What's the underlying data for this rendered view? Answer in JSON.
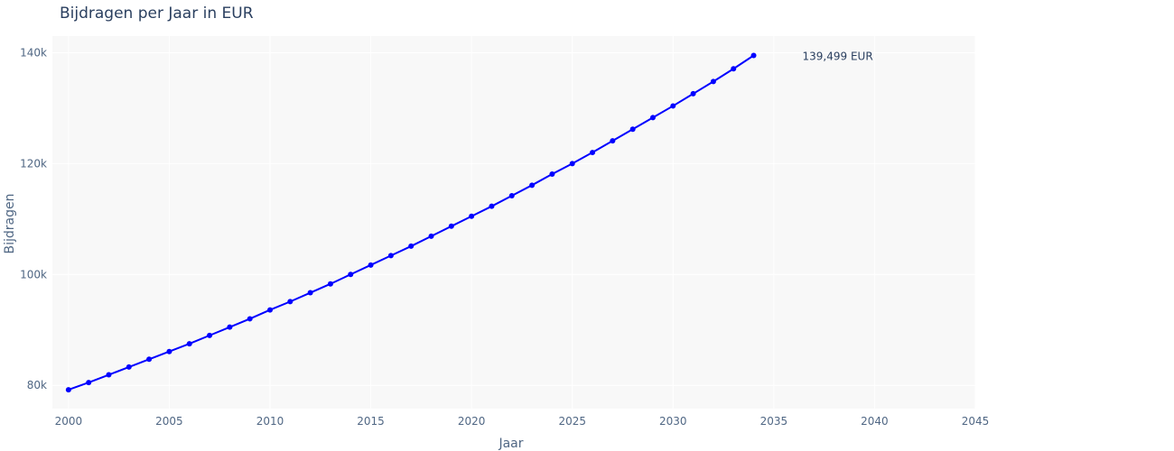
{
  "chart_data": {
    "type": "line",
    "title": "Bijdragen per Jaar in EUR",
    "xlabel": "Jaar",
    "ylabel": "Bijdragen",
    "xlim": [
      1999.2,
      2045
    ],
    "ylim": [
      75800,
      143000
    ],
    "xticks": [
      2000,
      2005,
      2010,
      2015,
      2020,
      2025,
      2030,
      2035,
      2040,
      2045
    ],
    "yticks": [
      80000,
      100000,
      120000,
      140000
    ],
    "ytick_labels": [
      "80k",
      "100k",
      "120k",
      "140k"
    ],
    "grid": true,
    "legend": "none",
    "line_color": "#0000ff",
    "plot_background": "#f8f8f8",
    "series": [
      {
        "x": [
          2000,
          2001,
          2002,
          2003,
          2004,
          2005,
          2006,
          2007,
          2008,
          2009,
          2010,
          2011,
          2012,
          2013,
          2014,
          2015,
          2016,
          2017,
          2018,
          2019,
          2020,
          2021,
          2022,
          2023,
          2024,
          2025,
          2026,
          2027,
          2028,
          2029,
          2030,
          2031,
          2032,
          2033,
          2034
        ],
        "values": [
          79200,
          80500,
          81900,
          83300,
          84700,
          86100,
          87500,
          89000,
          90500,
          92000,
          93600,
          95100,
          96700,
          98300,
          100000,
          101700,
          103400,
          105100,
          106900,
          108700,
          110500,
          112300,
          114200,
          116100,
          118100,
          120000,
          122000,
          124100,
          126200,
          128300,
          130400,
          132600,
          134800,
          137100,
          139499
        ]
      }
    ],
    "annotation": {
      "text": "139,499 EUR",
      "x": 2034,
      "y": 139499
    }
  }
}
